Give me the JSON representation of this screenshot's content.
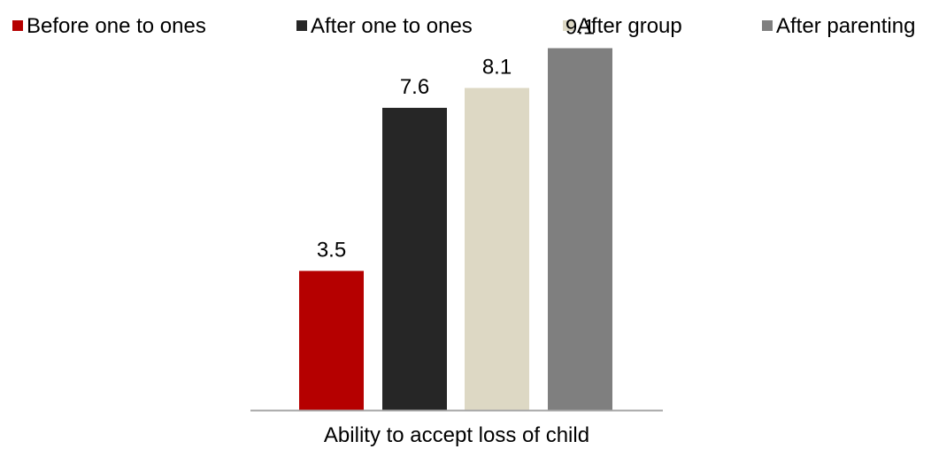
{
  "chart_data": {
    "type": "bar",
    "categories": [
      "Ability to accept loss of child"
    ],
    "series": [
      {
        "name": "Before one to ones",
        "values": [
          3.5
        ],
        "color": "#b50000"
      },
      {
        "name": "After one to ones",
        "values": [
          7.6
        ],
        "color": "#262626"
      },
      {
        "name": "After group",
        "values": [
          8.1
        ],
        "color": "#ddd8c4"
      },
      {
        "name": "After parenting",
        "values": [
          9.1
        ],
        "color": "#7f7f7f"
      }
    ],
    "title": "",
    "xlabel": "",
    "ylabel": "",
    "ylim": [
      0,
      10
    ],
    "grid": false,
    "legend_position": "top",
    "data_labels": [
      "3.5",
      "7.6",
      "8.1",
      "9.1"
    ],
    "axis_color": "#a6a6a6"
  }
}
